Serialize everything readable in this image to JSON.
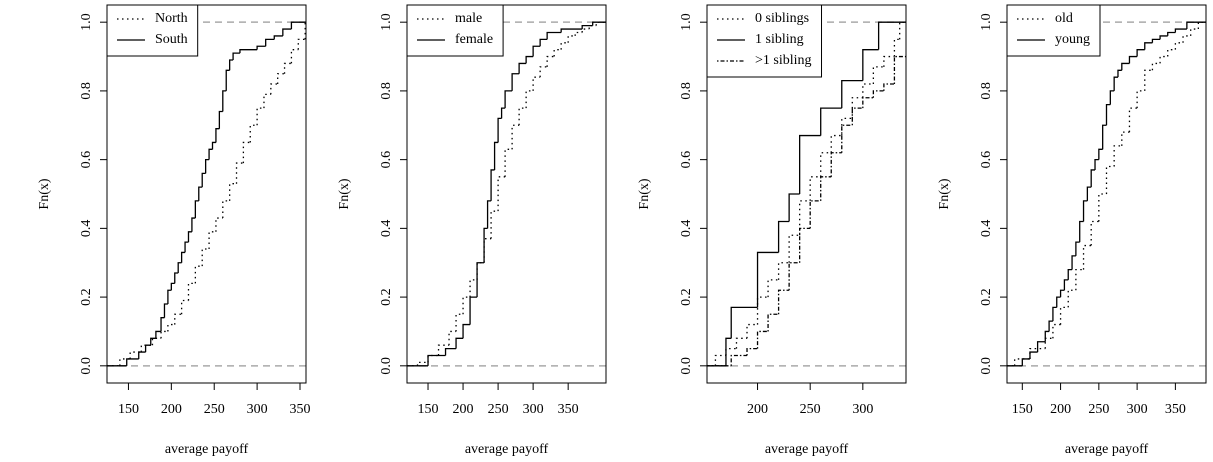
{
  "chart_data": [
    {
      "type": "ecdf",
      "xlabel": "average payoff",
      "ylabel": "Fn(x)",
      "xlim": [
        125,
        357
      ],
      "ylim": [
        -0.05,
        1.05
      ],
      "xticks": [
        150,
        200,
        250,
        300,
        350
      ],
      "yticks": [
        {
          "value": 0,
          "label": "0.0"
        },
        0.2,
        0.4,
        0.6,
        0.8,
        {
          "value": 1,
          "label": "1.0"
        }
      ],
      "hlines": [
        0,
        1
      ],
      "legend": "top-left",
      "series": [
        {
          "name": "North",
          "dash": "dotted",
          "x": [
            140,
            152,
            165,
            178,
            188,
            196,
            204,
            212,
            220,
            228,
            236,
            244,
            252,
            260,
            268,
            276,
            284,
            292,
            300,
            308,
            316,
            324,
            332,
            340,
            348,
            356
          ],
          "values": [
            0.02,
            0.04,
            0.06,
            0.08,
            0.1,
            0.12,
            0.15,
            0.19,
            0.24,
            0.29,
            0.34,
            0.39,
            0.43,
            0.48,
            0.53,
            0.59,
            0.65,
            0.7,
            0.75,
            0.79,
            0.82,
            0.85,
            0.88,
            0.92,
            0.95,
            1.0
          ]
        },
        {
          "name": "South",
          "dash": "solid",
          "x": [
            148,
            162,
            170,
            176,
            182,
            188,
            192,
            196,
            200,
            204,
            208,
            212,
            216,
            220,
            224,
            228,
            232,
            236,
            240,
            244,
            248,
            252,
            256,
            260,
            264,
            268,
            272,
            280,
            300,
            310,
            320,
            330,
            340
          ],
          "values": [
            0.02,
            0.04,
            0.06,
            0.08,
            0.1,
            0.14,
            0.18,
            0.22,
            0.24,
            0.27,
            0.3,
            0.33,
            0.36,
            0.39,
            0.43,
            0.48,
            0.52,
            0.56,
            0.6,
            0.63,
            0.65,
            0.69,
            0.74,
            0.8,
            0.86,
            0.89,
            0.91,
            0.92,
            0.93,
            0.95,
            0.96,
            0.98,
            1.0
          ]
        }
      ]
    },
    {
      "type": "ecdf",
      "xlabel": "average payoff",
      "ylabel": "Fn(x)",
      "xlim": [
        120,
        404
      ],
      "ylim": [
        -0.05,
        1.05
      ],
      "xticks": [
        150,
        200,
        250,
        300,
        350
      ],
      "yticks": [
        {
          "value": 0,
          "label": "0.0"
        },
        0.2,
        0.4,
        0.6,
        0.8,
        {
          "value": 1,
          "label": "1.0"
        }
      ],
      "hlines": [
        0,
        1
      ],
      "legend": "top-left",
      "series": [
        {
          "name": "male",
          "dash": "dotted",
          "x": [
            135,
            150,
            165,
            180,
            190,
            200,
            210,
            220,
            230,
            240,
            250,
            260,
            270,
            280,
            290,
            300,
            310,
            320,
            330,
            340,
            350,
            360,
            370,
            380,
            390
          ],
          "values": [
            0.01,
            0.03,
            0.06,
            0.1,
            0.15,
            0.2,
            0.25,
            0.3,
            0.37,
            0.45,
            0.55,
            0.63,
            0.7,
            0.75,
            0.8,
            0.84,
            0.87,
            0.9,
            0.92,
            0.94,
            0.96,
            0.97,
            0.98,
            0.99,
            1.0
          ]
        },
        {
          "name": "female",
          "dash": "solid",
          "x": [
            150,
            175,
            190,
            200,
            210,
            220,
            230,
            235,
            240,
            245,
            250,
            255,
            260,
            270,
            280,
            290,
            300,
            310,
            320,
            340,
            370,
            385
          ],
          "values": [
            0.03,
            0.05,
            0.08,
            0.12,
            0.2,
            0.3,
            0.4,
            0.48,
            0.57,
            0.65,
            0.72,
            0.75,
            0.8,
            0.85,
            0.88,
            0.9,
            0.93,
            0.95,
            0.97,
            0.98,
            0.99,
            1.0
          ]
        }
      ]
    },
    {
      "type": "ecdf",
      "xlabel": "average payoff",
      "ylabel": "Fn(x)",
      "xlim": [
        152,
        341
      ],
      "ylim": [
        -0.05,
        1.05
      ],
      "xticks": [
        200,
        250,
        300
      ],
      "yticks": [
        {
          "value": 0,
          "label": "0.0"
        },
        0.2,
        0.4,
        0.6,
        0.8,
        {
          "value": 1,
          "label": "1.0"
        }
      ],
      "hlines": [
        0,
        1
      ],
      "legend": "top-left",
      "series": [
        {
          "name": "0 siblings",
          "dash": "dotted",
          "x": [
            160,
            170,
            180,
            190,
            200,
            210,
            220,
            230,
            240,
            250,
            260,
            270,
            280,
            290,
            300,
            310,
            320,
            330,
            335
          ],
          "values": [
            0.03,
            0.05,
            0.08,
            0.12,
            0.2,
            0.25,
            0.3,
            0.38,
            0.48,
            0.55,
            0.62,
            0.67,
            0.72,
            0.78,
            0.82,
            0.87,
            0.9,
            0.95,
            1.0
          ]
        },
        {
          "name": "1 sibling",
          "dash": "solid",
          "x": [
            170,
            175,
            200,
            220,
            230,
            240,
            260,
            280,
            300,
            315
          ],
          "values": [
            0.08,
            0.17,
            0.33,
            0.42,
            0.5,
            0.67,
            0.75,
            0.83,
            0.92,
            1.0
          ]
        },
        {
          "name": ">1 sibling",
          "dash": "dot-dash",
          "x": [
            175,
            190,
            200,
            210,
            220,
            230,
            240,
            250,
            260,
            270,
            280,
            290,
            300,
            310,
            320,
            330
          ],
          "values": [
            0.03,
            0.05,
            0.1,
            0.15,
            0.22,
            0.3,
            0.4,
            0.48,
            0.55,
            0.62,
            0.7,
            0.75,
            0.78,
            0.8,
            0.82,
            0.9
          ]
        }
      ]
    },
    {
      "type": "ecdf",
      "xlabel": "average payoff",
      "ylabel": "Fn(x)",
      "xlim": [
        130,
        390
      ],
      "ylim": [
        -0.05,
        1.05
      ],
      "xticks": [
        150,
        200,
        250,
        300,
        350
      ],
      "yticks": [
        {
          "value": 0,
          "label": "0.0"
        },
        0.2,
        0.4,
        0.6,
        0.8,
        {
          "value": 1,
          "label": "1.0"
        }
      ],
      "hlines": [
        0,
        1
      ],
      "legend": "top-left",
      "series": [
        {
          "name": "old",
          "dash": "dotted",
          "x": [
            140,
            160,
            180,
            190,
            200,
            210,
            220,
            230,
            240,
            250,
            260,
            270,
            280,
            290,
            300,
            310,
            320,
            330,
            340,
            350,
            360,
            370,
            380
          ],
          "values": [
            0.02,
            0.05,
            0.08,
            0.12,
            0.17,
            0.22,
            0.28,
            0.35,
            0.42,
            0.5,
            0.58,
            0.64,
            0.68,
            0.75,
            0.8,
            0.86,
            0.88,
            0.9,
            0.92,
            0.94,
            0.96,
            0.98,
            1.0
          ]
        },
        {
          "name": "young",
          "dash": "solid",
          "x": [
            150,
            160,
            170,
            180,
            185,
            190,
            195,
            200,
            205,
            210,
            215,
            220,
            225,
            230,
            235,
            240,
            245,
            250,
            255,
            260,
            265,
            270,
            275,
            280,
            290,
            300,
            310,
            320,
            330,
            340,
            350,
            365
          ],
          "values": [
            0.02,
            0.04,
            0.07,
            0.1,
            0.13,
            0.17,
            0.2,
            0.22,
            0.25,
            0.28,
            0.32,
            0.36,
            0.42,
            0.48,
            0.52,
            0.57,
            0.6,
            0.63,
            0.7,
            0.76,
            0.8,
            0.84,
            0.86,
            0.88,
            0.9,
            0.92,
            0.94,
            0.95,
            0.96,
            0.97,
            0.98,
            1.0
          ]
        }
      ]
    }
  ]
}
